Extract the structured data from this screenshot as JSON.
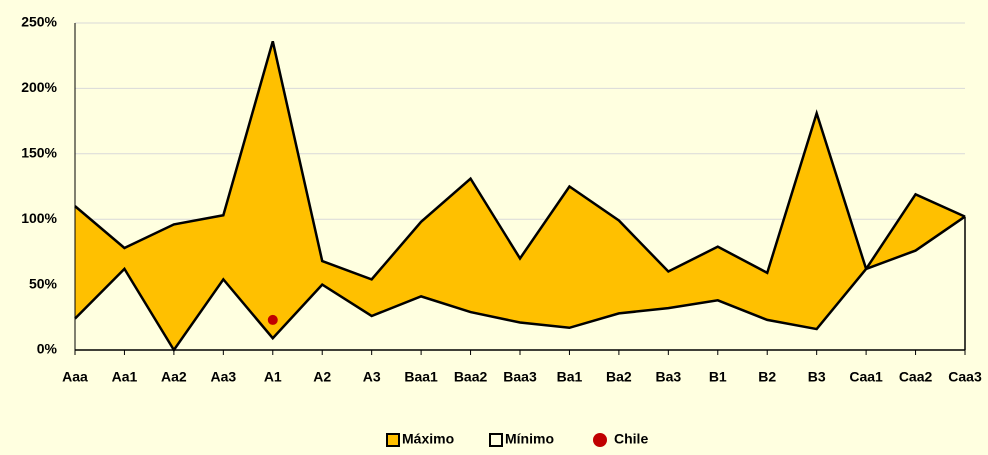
{
  "chart_data": {
    "type": "area",
    "categories": [
      "Aaa",
      "Aa1",
      "Aa2",
      "Aa3",
      "A1",
      "A2",
      "A3",
      "Baa1",
      "Baa2",
      "Baa3",
      "Ba1",
      "Ba2",
      "Ba3",
      "B1",
      "B2",
      "B3",
      "Caa1",
      "Caa2",
      "Caa3"
    ],
    "series": [
      {
        "name": "Máximo",
        "color": "#FFC000",
        "values": [
          110,
          78,
          96,
          103,
          236,
          68,
          54,
          98,
          131,
          70,
          125,
          99,
          60,
          79,
          59,
          181,
          62,
          119,
          102
        ]
      },
      {
        "name": "Mínimo",
        "color": "#FFFFE0",
        "values": [
          24,
          62,
          0,
          54,
          9,
          50,
          26,
          41,
          29,
          21,
          17,
          28,
          32,
          38,
          23,
          16,
          62,
          76,
          102
        ]
      },
      {
        "name": "Chile",
        "color": "#C00000",
        "type": "scatter",
        "values": [
          null,
          null,
          null,
          null,
          23,
          null,
          null,
          null,
          null,
          null,
          null,
          null,
          null,
          null,
          null,
          null,
          null,
          null,
          null
        ]
      }
    ],
    "ylim": [
      0,
      250
    ],
    "yticks": [
      {
        "value": 0,
        "label": "0%"
      },
      {
        "value": 50,
        "label": "50%"
      },
      {
        "value": 100,
        "label": "100%"
      },
      {
        "value": 150,
        "label": "150%"
      },
      {
        "value": 200,
        "label": "200%"
      },
      {
        "value": 250,
        "label": "250%"
      }
    ],
    "grid": true,
    "legend": "bottom"
  }
}
